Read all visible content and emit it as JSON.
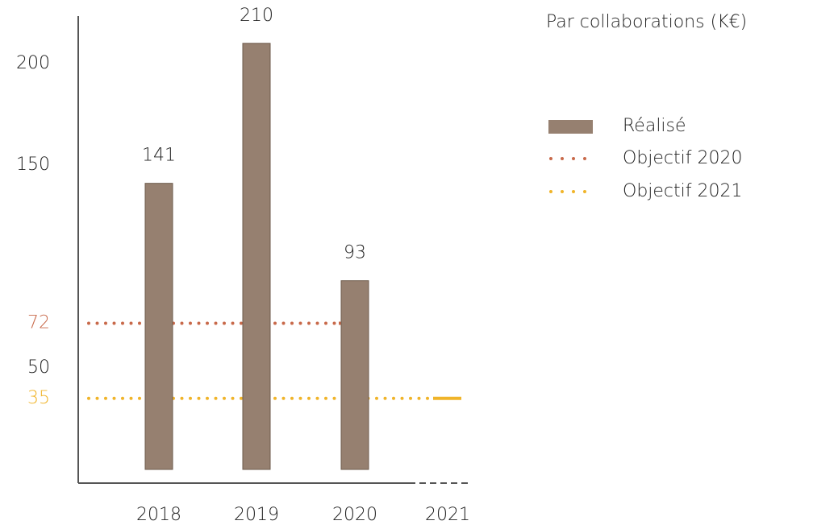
{
  "chart_data": {
    "type": "bar",
    "title": "Par collaborations (K€)",
    "categories": [
      "2018",
      "2019",
      "2020",
      "2021"
    ],
    "series": [
      {
        "name": "Réalisé",
        "color": "#968070",
        "values": [
          141,
          210,
          93,
          null
        ]
      }
    ],
    "reference_lines": [
      {
        "name": "Objectif 2020",
        "value": 72,
        "color": "#c8694a"
      },
      {
        "name": "Objectif 2021",
        "value": 35,
        "color": "#f0b429"
      }
    ],
    "ylim": [
      0,
      225
    ],
    "yticks": [
      50,
      150,
      200
    ],
    "grid": false,
    "legend": "right"
  }
}
